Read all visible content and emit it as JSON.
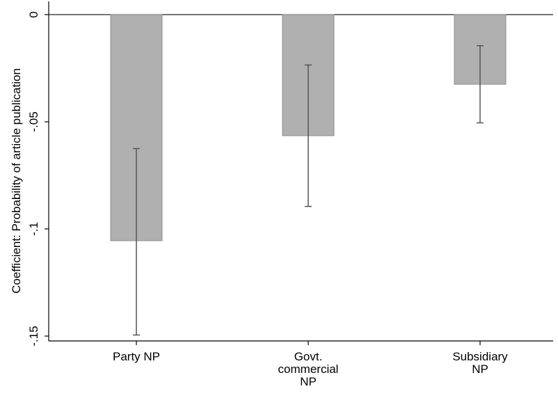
{
  "chart_data": {
    "type": "bar",
    "title": "",
    "xlabel": "",
    "ylabel": "Coefficient: Probability of article publication",
    "categories": [
      [
        "Party NP"
      ],
      [
        "Govt.",
        "commercial",
        "NP"
      ],
      [
        "Subsidiary",
        "NP"
      ]
    ],
    "values": [
      -0.1055,
      -0.0565,
      -0.0325
    ],
    "ci_low": [
      -0.1495,
      -0.0895,
      -0.0505
    ],
    "ci_high": [
      -0.0625,
      -0.0235,
      -0.0145
    ],
    "ylim": [
      -0.15,
      0
    ],
    "yticks": [
      0,
      -0.05,
      -0.1,
      -0.15
    ],
    "ytick_labels": [
      "0",
      "-.05",
      "-.1",
      "-.15"
    ],
    "bar_color": "#b0b0b0",
    "bar_edge_color": "#8c8c8c",
    "errorbar_color": "#555555",
    "zero_line": true,
    "grid": false,
    "legend": false
  }
}
